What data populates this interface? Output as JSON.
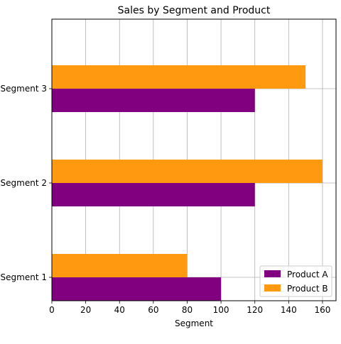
{
  "chart_data": {
    "type": "bar",
    "orientation": "horizontal",
    "title": "Sales by Segment and Product",
    "xlabel": "Segment",
    "ylabel": "",
    "categories": [
      "Segment 1",
      "Segment 2",
      "Segment 3"
    ],
    "series": [
      {
        "name": "Product A",
        "values": [
          100,
          120,
          120
        ],
        "color": "#800080"
      },
      {
        "name": "Product B",
        "values": [
          80,
          160,
          150
        ],
        "color": "#ff9910"
      }
    ],
    "xlim": [
      0,
      168
    ],
    "xticks": [
      0,
      20,
      40,
      60,
      80,
      100,
      120,
      140,
      160
    ],
    "grid": true,
    "legend_position": "lower-right"
  }
}
